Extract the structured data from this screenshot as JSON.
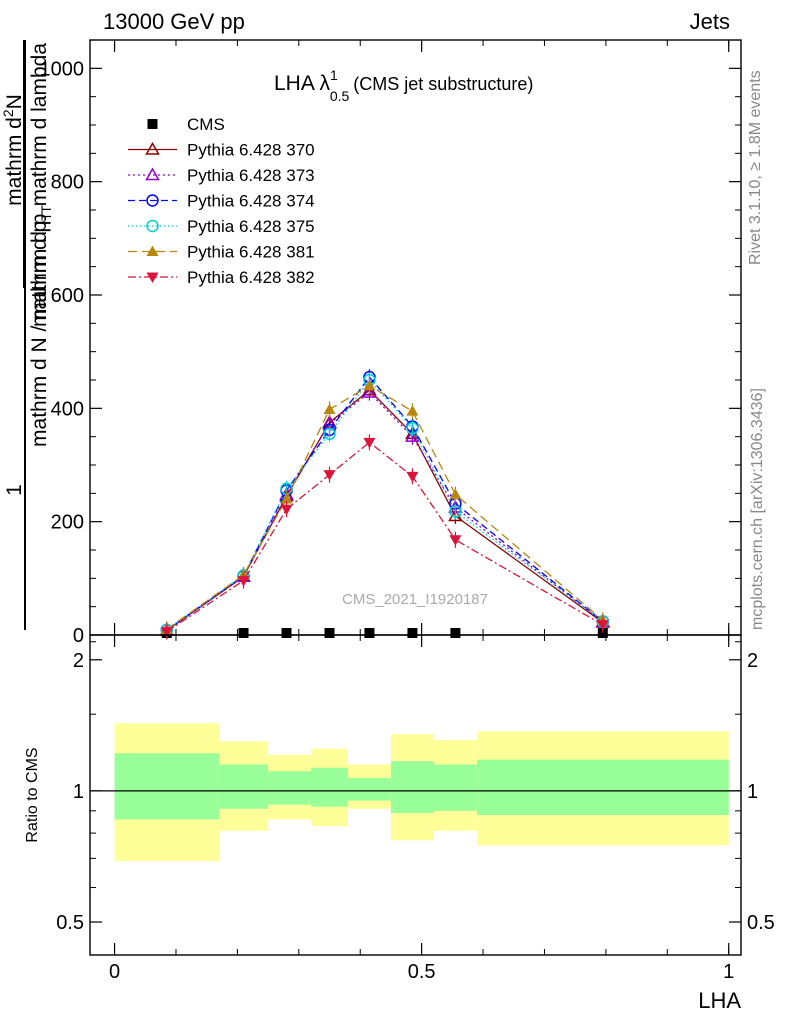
{
  "header": {
    "left": "13000 GeV pp",
    "right": "Jets"
  },
  "plot_title": {
    "main": "LHA λ",
    "superscript": "1",
    "subscript": "0.5",
    "suffix": "(CMS jet substructure)"
  },
  "watermark": "CMS_2021_I1920187",
  "side_labels": {
    "rivet": "Rivet 3.1.10, ≥ 1.8M events",
    "mcplots": "mcplots.cern.ch [arXiv:1306.3436]"
  },
  "ylabel_main": {
    "numerator": "mathrm d²N",
    "num_part1": "mathrm d",
    "num_sup": "2",
    "num_part2": "N",
    "denominator": "mathrm d p_T mathrm d lambda",
    "den_part1": "mathrm d p",
    "den_sub": "T",
    "den_part2": " mathrm d lambda",
    "prefactor_num": "1",
    "prefactor_den_part1": "mathrm d N / mathrm d p",
    "prefactor_den_sub": "T"
  },
  "ylabel_ratio": "Ratio to CMS",
  "xlabel": "LHA",
  "colors": {
    "cms": "#000000",
    "p370": "#8b0000",
    "p373": "#9400d3",
    "p374": "#0000ff",
    "p375": "#00ced1",
    "p381": "#b8860b",
    "p382": "#dc143c",
    "band_inner": "#99ff99",
    "band_outer": "#ffff99"
  },
  "chart_data": [
    {
      "type": "line",
      "xlim": [
        -0.04,
        1.02
      ],
      "ylim": [
        0,
        1050
      ],
      "yticks": [
        0,
        200,
        400,
        600,
        800,
        1000
      ],
      "ytick_labels": [
        "0",
        "200",
        "400",
        "600",
        "800",
        "1000"
      ],
      "legend_position": "top-left",
      "x": [
        0.085,
        0.21,
        0.28,
        0.35,
        0.415,
        0.485,
        0.555,
        0.795
      ],
      "series": [
        {
          "name": "CMS",
          "marker": "square",
          "values": [
            0.5,
            0.5,
            0.5,
            0.5,
            0.5,
            0.5,
            0.5,
            0.5
          ]
        },
        {
          "name": "Pythia 6.428 370",
          "marker": "triangle-open",
          "dash": "none",
          "values": [
            8,
            103,
            245,
            375,
            432,
            355,
            210,
            22
          ]
        },
        {
          "name": "Pythia 6.428 373",
          "marker": "triangle-open",
          "dash": "dot",
          "values": [
            8,
            103,
            248,
            373,
            428,
            350,
            225,
            23
          ]
        },
        {
          "name": "Pythia 6.428 374",
          "marker": "circle-open",
          "dash": "dash",
          "values": [
            9,
            104,
            255,
            362,
            455,
            368,
            232,
            24
          ]
        },
        {
          "name": "Pythia 6.428 375",
          "marker": "circle-open",
          "dash": "dot-fine",
          "values": [
            9,
            105,
            258,
            355,
            450,
            365,
            218,
            24
          ]
        },
        {
          "name": "Pythia 6.428 381",
          "marker": "triangle-filled",
          "dash": "dash-long",
          "values": [
            10,
            106,
            240,
            398,
            440,
            395,
            248,
            26
          ]
        },
        {
          "name": "Pythia 6.428 382",
          "marker": "triangle-down-filled",
          "dash": "dash-dot",
          "values": [
            6,
            96,
            222,
            283,
            340,
            280,
            168,
            18
          ]
        }
      ]
    },
    {
      "type": "area",
      "title": "Ratio to CMS",
      "xlim": [
        -0.04,
        1.02
      ],
      "ylim": [
        0.42,
        2.28
      ],
      "scale": "log",
      "yticks": [
        0.5,
        1,
        2
      ],
      "ytick_labels": [
        "0.5",
        "1",
        "2"
      ],
      "xticks": [
        0,
        0.5,
        1
      ],
      "xtick_labels": [
        "0",
        "0.5",
        "1"
      ],
      "bins": [
        {
          "x0": 0.0,
          "x1": 0.17,
          "inner": [
            0.86,
            1.22
          ],
          "outer": [
            0.69,
            1.43
          ]
        },
        {
          "x0": 0.17,
          "x1": 0.25,
          "inner": [
            0.91,
            1.15
          ],
          "outer": [
            0.81,
            1.3
          ]
        },
        {
          "x0": 0.25,
          "x1": 0.32,
          "inner": [
            0.93,
            1.11
          ],
          "outer": [
            0.86,
            1.21
          ]
        },
        {
          "x0": 0.32,
          "x1": 0.38,
          "inner": [
            0.92,
            1.13
          ],
          "outer": [
            0.83,
            1.25
          ]
        },
        {
          "x0": 0.38,
          "x1": 0.45,
          "inner": [
            0.95,
            1.07
          ],
          "outer": [
            0.91,
            1.15
          ]
        },
        {
          "x0": 0.45,
          "x1": 0.52,
          "inner": [
            0.89,
            1.17
          ],
          "outer": [
            0.77,
            1.35
          ]
        },
        {
          "x0": 0.52,
          "x1": 0.59,
          "inner": [
            0.9,
            1.15
          ],
          "outer": [
            0.81,
            1.31
          ]
        },
        {
          "x0": 0.59,
          "x1": 1.0,
          "inner": [
            0.88,
            1.18
          ],
          "outer": [
            0.75,
            1.37
          ]
        }
      ],
      "reference": 1
    }
  ]
}
